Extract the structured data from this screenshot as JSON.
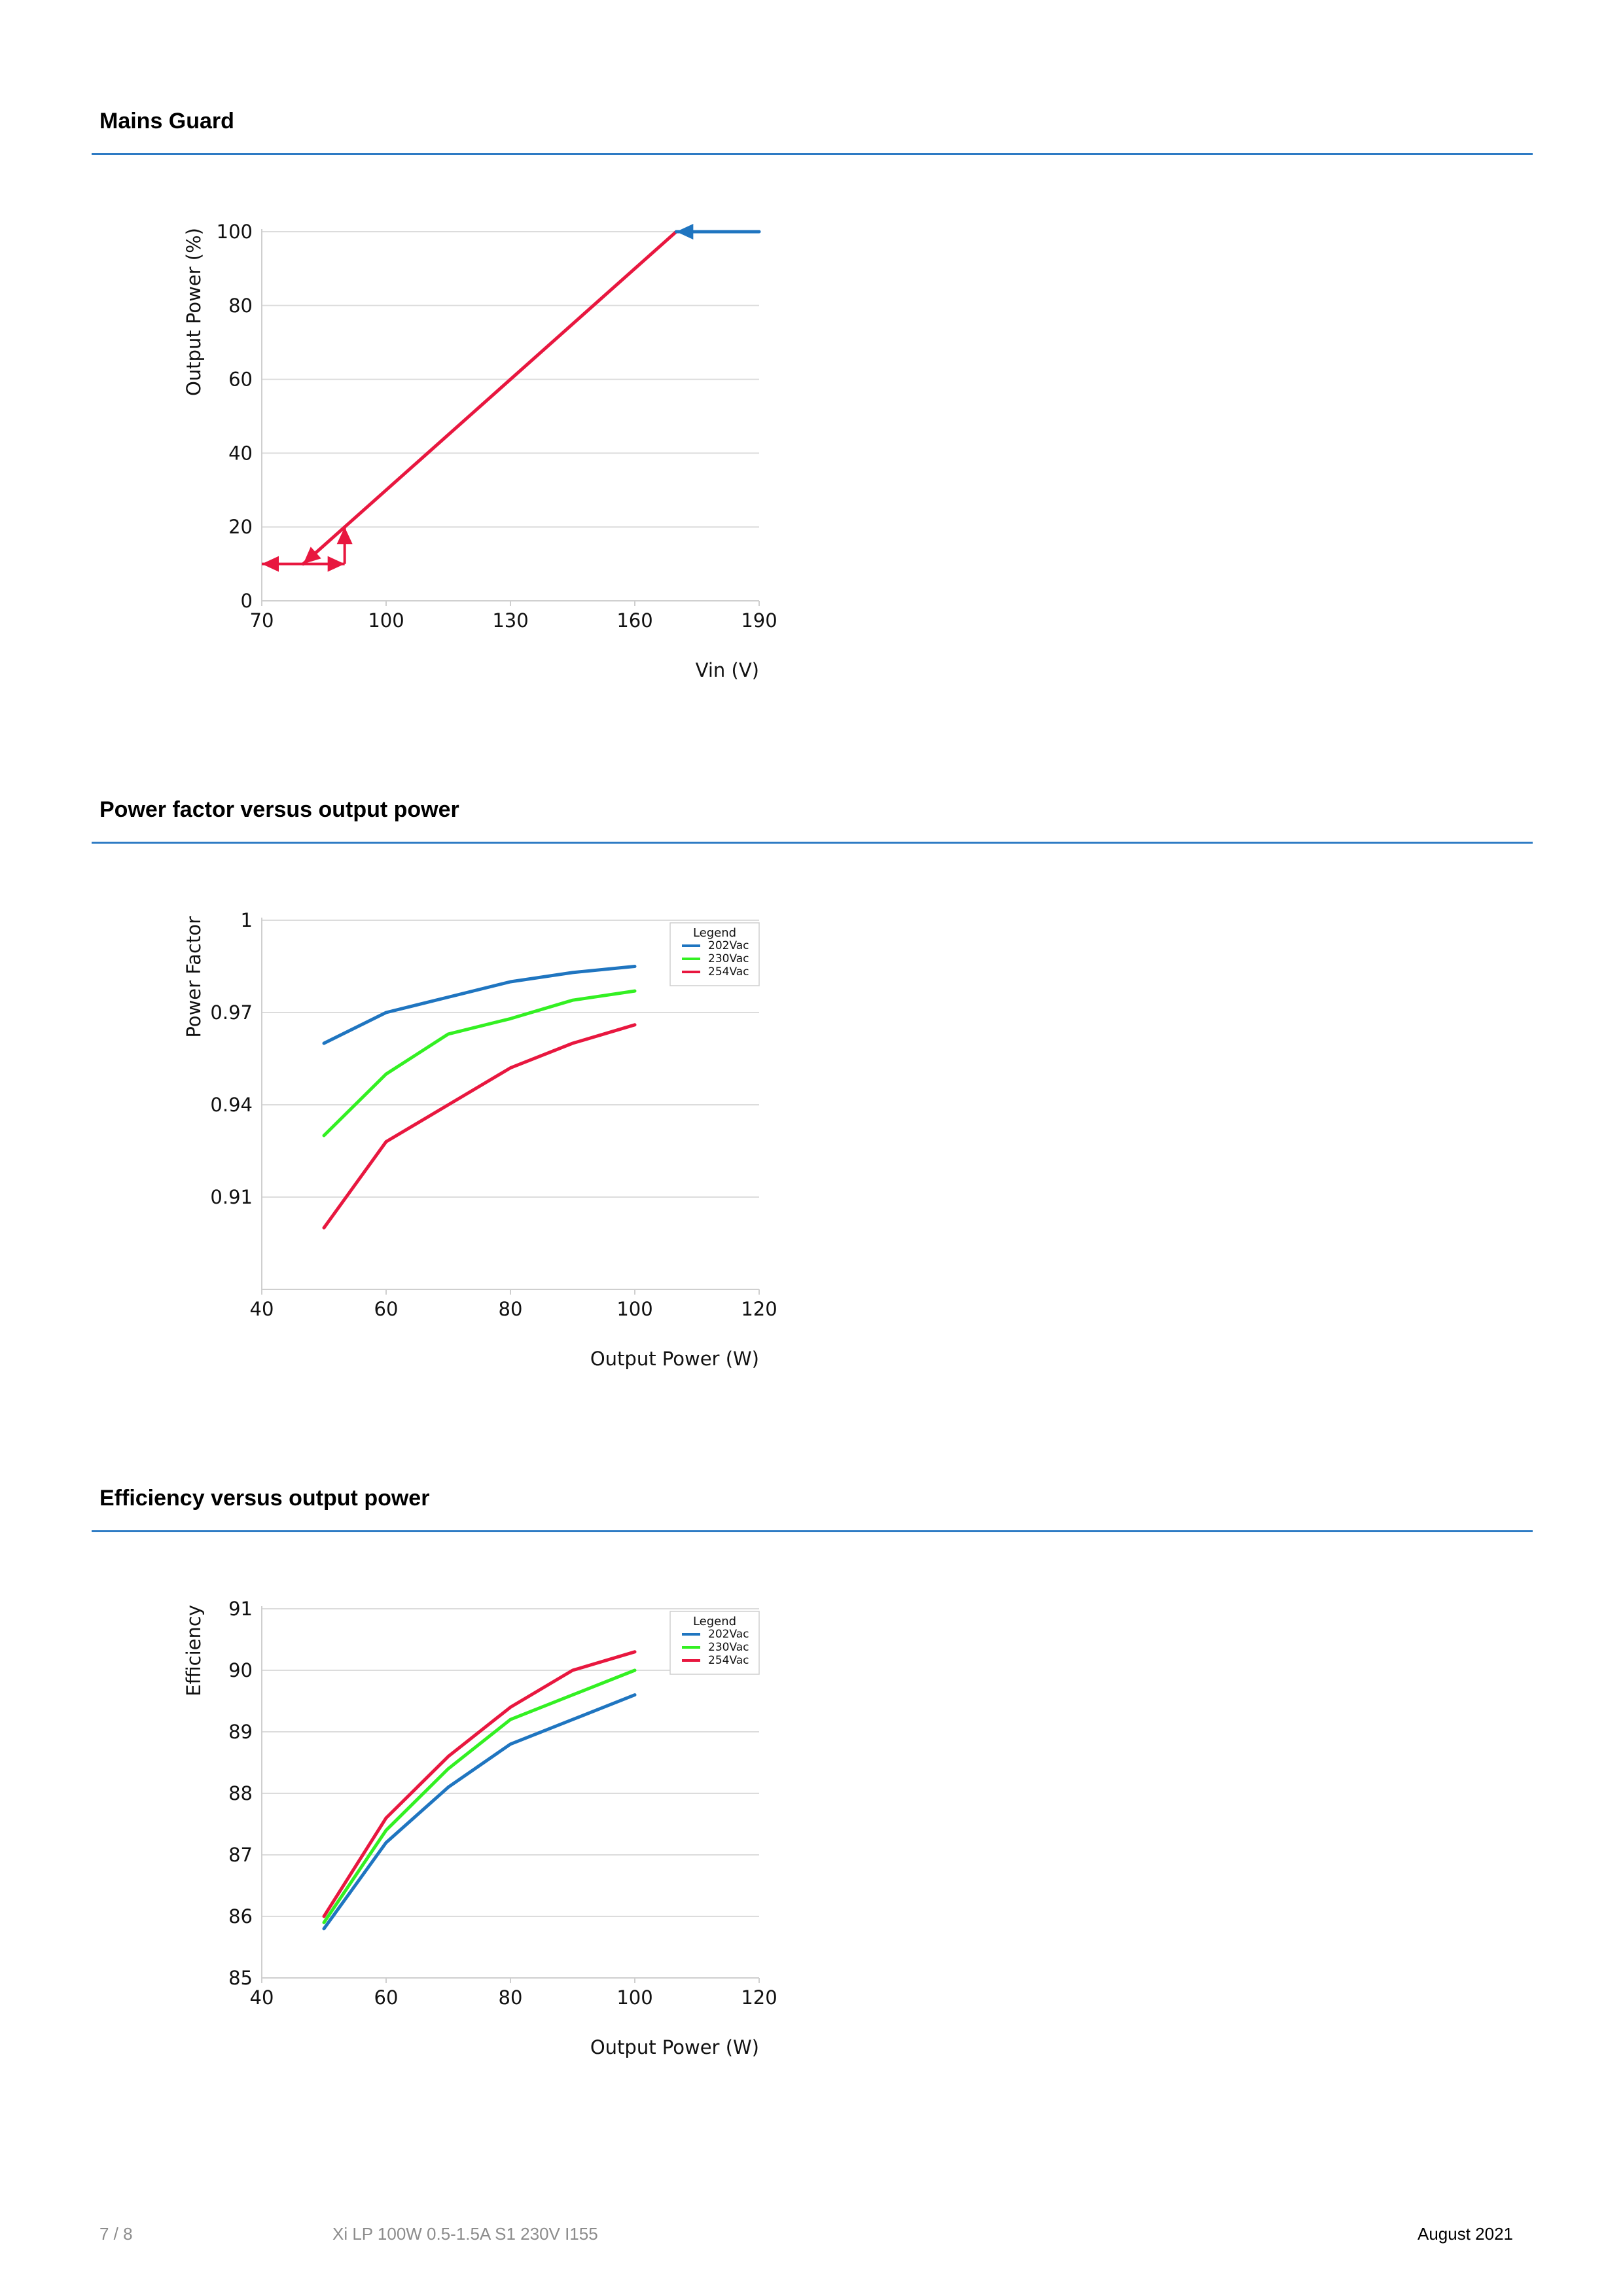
{
  "sections": [
    {
      "title": "Mains Guard"
    },
    {
      "title": "Power factor versus output power"
    },
    {
      "title": "Efficiency versus output power"
    }
  ],
  "footer": {
    "page": "7 / 8",
    "product": "Xi LP 100W 0.5-1.5A S1 230V I155",
    "date": "August 2021"
  },
  "chart_data": [
    {
      "type": "line",
      "xlabel": "Vin (V)",
      "ylabel": "Output Power (%)",
      "xlim": [
        70,
        190
      ],
      "ylim": [
        0,
        100
      ],
      "xticks": [
        70,
        100,
        130,
        160,
        190
      ],
      "xtick_labels": [
        "70",
        "100",
        "130",
        "160",
        "190"
      ],
      "yticks": [
        0,
        20,
        40,
        60,
        80,
        100
      ],
      "ytick_labels": [
        "0",
        "20",
        "40",
        "60",
        "80",
        "100"
      ],
      "grid": true,
      "series": [
        {
          "color": "#e8173f",
          "x": [
            80,
            170
          ],
          "y": [
            10,
            100
          ]
        },
        {
          "color": "#1f75c0",
          "x": [
            190,
            170
          ],
          "y": [
            100,
            100
          ]
        }
      ],
      "arrows": [
        {
          "color": "#1f75c0",
          "from": [
            190,
            100
          ],
          "to": [
            170,
            100
          ]
        },
        {
          "color": "#e8173f",
          "from": [
            80,
            10
          ],
          "to": [
            70,
            10
          ]
        },
        {
          "color": "#e8173f",
          "from": [
            80,
            10
          ],
          "to": [
            90,
            10
          ]
        },
        {
          "color": "#e8173f",
          "from": [
            90,
            10
          ],
          "to": [
            90,
            20
          ]
        },
        {
          "color": "#e8173f",
          "from": [
            84,
            14
          ],
          "to": [
            80,
            10
          ]
        }
      ]
    },
    {
      "type": "line",
      "xlabel": "Output Power (W)",
      "ylabel": "Power Factor",
      "xlim": [
        40,
        120
      ],
      "ylim": [
        0.88,
        1
      ],
      "xticks": [
        40,
        60,
        80,
        100,
        120
      ],
      "xtick_labels": [
        "40",
        "60",
        "80",
        "100",
        "120"
      ],
      "yticks": [
        0.91,
        0.94,
        0.97,
        1
      ],
      "ytick_labels": [
        "0.91",
        "0.94",
        "0.97",
        "1"
      ],
      "grid": true,
      "legend": {
        "title": "Legend",
        "position": "top-right"
      },
      "x": [
        50,
        60,
        70,
        80,
        90,
        100
      ],
      "series": [
        {
          "name": "202Vac",
          "color": "#1f75c0",
          "values": [
            0.96,
            0.97,
            0.975,
            0.98,
            0.983,
            0.985
          ]
        },
        {
          "name": "230Vac",
          "color": "#33f022",
          "values": [
            0.93,
            0.95,
            0.963,
            0.968,
            0.974,
            0.977
          ]
        },
        {
          "name": "254Vac",
          "color": "#e8173f",
          "values": [
            0.9,
            0.928,
            0.94,
            0.952,
            0.96,
            0.966
          ]
        }
      ]
    },
    {
      "type": "line",
      "xlabel": "Output Power (W)",
      "ylabel": "Efficiency",
      "xlim": [
        40,
        120
      ],
      "ylim": [
        85,
        91
      ],
      "xticks": [
        40,
        60,
        80,
        100,
        120
      ],
      "xtick_labels": [
        "40",
        "60",
        "80",
        "100",
        "120"
      ],
      "yticks": [
        85,
        86,
        87,
        88,
        89,
        90,
        91
      ],
      "ytick_labels": [
        "85",
        "86",
        "87",
        "88",
        "89",
        "90",
        "91"
      ],
      "grid": true,
      "legend": {
        "title": "Legend",
        "position": "top-right"
      },
      "x": [
        50,
        60,
        70,
        80,
        90,
        100
      ],
      "series": [
        {
          "name": "202Vac",
          "color": "#1f75c0",
          "values": [
            85.8,
            87.2,
            88.1,
            88.8,
            89.2,
            89.6
          ]
        },
        {
          "name": "230Vac",
          "color": "#33f022",
          "values": [
            85.9,
            87.4,
            88.4,
            89.2,
            89.6,
            90.0
          ]
        },
        {
          "name": "254Vac",
          "color": "#e8173f",
          "values": [
            86.0,
            87.6,
            88.6,
            89.4,
            90.0,
            90.3
          ]
        }
      ]
    }
  ]
}
